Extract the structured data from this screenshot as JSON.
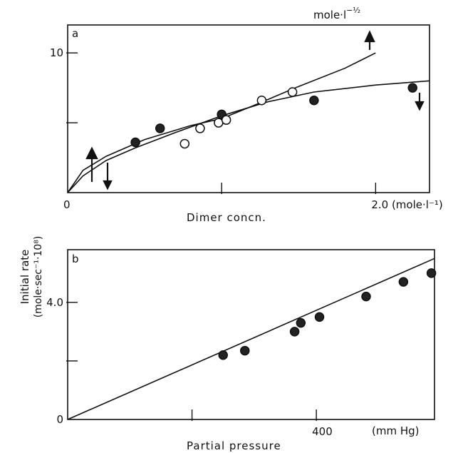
{
  "ylabel_line1": "Initial rate",
  "ylabel_line2": "(mole·sec⁻¹·10⁸)",
  "chart_data": [
    {
      "type": "scatter",
      "panel_label": "a",
      "xlabel": "Dimer concn.",
      "xlim": [
        0,
        2.35
      ],
      "ylim": [
        0,
        12
      ],
      "x_tick_labels": [
        {
          "x": 0,
          "label": "0"
        },
        {
          "x": 2.0,
          "label": "2.0 (mole·l⁻¹)"
        }
      ],
      "x_ticks_unlabeled": [
        1.0
      ],
      "y_tick_labels": [
        {
          "y": 10,
          "label": "10"
        }
      ],
      "y_ticks_unlabeled": [
        5
      ],
      "alt_axis_unit": "mole·l⁻¹ᐟ²",
      "series": [
        {
          "marker": "filled",
          "points": [
            [
              0.44,
              3.6
            ],
            [
              0.6,
              4.6
            ],
            [
              1.0,
              5.6
            ],
            [
              1.6,
              6.6
            ],
            [
              2.24,
              7.5
            ]
          ]
        },
        {
          "marker": "open",
          "points": [
            [
              0.76,
              3.5
            ],
            [
              0.86,
              4.6
            ],
            [
              0.98,
              5.0
            ],
            [
              1.03,
              5.2
            ],
            [
              1.26,
              6.6
            ],
            [
              1.46,
              7.2
            ]
          ]
        }
      ],
      "curves": [
        {
          "points": [
            [
              0,
              0
            ],
            [
              0.1,
              1.2
            ],
            [
              0.25,
              2.3
            ],
            [
              0.44,
              3.2
            ],
            [
              0.7,
              4.3
            ],
            [
              1.0,
              5.5
            ],
            [
              1.3,
              6.5
            ],
            [
              1.6,
              7.2
            ],
            [
              2.0,
              7.7
            ],
            [
              2.35,
              8.0
            ]
          ]
        },
        {
          "points": [
            [
              0,
              0
            ],
            [
              0.1,
              1.6
            ],
            [
              0.25,
              2.6
            ],
            [
              0.5,
              3.8
            ],
            [
              0.8,
              4.8
            ],
            [
              1.0,
              5.3
            ],
            [
              1.2,
              6.2
            ],
            [
              1.5,
              7.6
            ],
            [
              1.8,
              8.9
            ],
            [
              2.0,
              10.0
            ]
          ]
        }
      ]
    },
    {
      "type": "scatter",
      "panel_label": "b",
      "xlabel": "Partial pressure",
      "xlim": [
        0,
        590
      ],
      "ylim": [
        0,
        5.8
      ],
      "x_tick_labels": [
        {
          "x": 400,
          "label": "400"
        }
      ],
      "x_ticks_unlabeled": [
        200
      ],
      "x_unit": "(mm Hg)",
      "y_tick_labels": [
        {
          "y": 0,
          "label": "0"
        },
        {
          "y": 4.0,
          "label": "4.0"
        }
      ],
      "y_ticks_unlabeled": [
        2.0
      ],
      "series": [
        {
          "marker": "filled",
          "points": [
            [
              250,
              2.2
            ],
            [
              285,
              2.35
            ],
            [
              365,
              3.0
            ],
            [
              375,
              3.3
            ],
            [
              405,
              3.5
            ],
            [
              480,
              4.2
            ],
            [
              540,
              4.7
            ],
            [
              585,
              5.0
            ]
          ]
        }
      ],
      "line": {
        "points": [
          [
            0,
            0
          ],
          [
            590,
            5.5
          ]
        ]
      }
    }
  ]
}
